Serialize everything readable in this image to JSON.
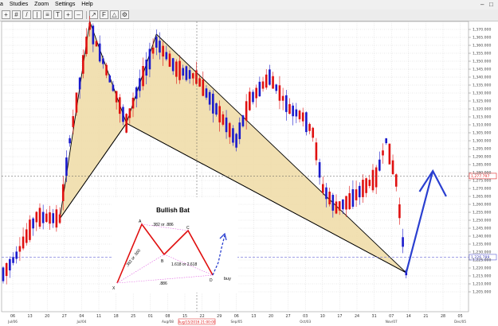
{
  "menu": [
    "a",
    "Studies",
    "Zoom",
    "Settings",
    "Help"
  ],
  "price_axis": {
    "labels": [
      "1,370.000",
      "1,365.000",
      "1,360.000",
      "1,355.000",
      "1,350.000",
      "1,345.000",
      "1,340.000",
      "1,335.000",
      "1,330.000",
      "1,325.000",
      "1,320.000",
      "1,315.000",
      "1,310.000",
      "1,305.000",
      "1,300.000",
      "1,295.000",
      "1,290.000",
      "1,285.000",
      "1,280.000",
      "1,275.000",
      "1,270.000",
      "1,265.000",
      "1,260.000",
      "1,255.000",
      "1,250.000",
      "1,245.000",
      "1,240.000",
      "1,235.000",
      "1,230.000",
      "1,225.000",
      "1,220.000",
      "1,215.000",
      "1,210.000",
      "1,205.000"
    ],
    "crosshair_price": "1,277.797",
    "h_line_price": "1,226.789"
  },
  "time_axis": {
    "days": [
      "06",
      "13",
      "20",
      "27",
      "04",
      "11",
      "18",
      "25",
      "01",
      "08",
      "15",
      "22",
      "29",
      "06",
      "13",
      "20",
      "27",
      "03",
      "10",
      "17",
      "24",
      "31",
      "07",
      "14",
      "21",
      "28",
      "05"
    ],
    "months": [
      "Jul/06",
      "Jul/04",
      "Aug/08",
      "Sep/05",
      "Oct/03",
      "Nov/07",
      "Dec/05"
    ],
    "cursor_label": "Aug/15/2016 21:00:00"
  },
  "chart_data": {
    "type": "candlestick",
    "y_range": [
      1203,
      1372
    ],
    "colors": {
      "up": "#1a1acc",
      "down": "#e01010",
      "pattern_fill": "#eedba4",
      "arrow": "#2a3fd0"
    },
    "pattern_points": [
      {
        "label": "X",
        "date": "2016-06-24",
        "price": 1251
      },
      {
        "label": "A",
        "date": "2016-07-06",
        "price": 1375
      },
      {
        "label": "B",
        "date": "2016-07-21",
        "price": 1311
      },
      {
        "label": "C",
        "date": "2016-08-04",
        "price": 1367
      },
      {
        "label": "D",
        "date": "2016-10-14",
        "price": 1217
      }
    ],
    "projection_arrow": [
      {
        "date": "2016-10-14",
        "price": 1217
      },
      {
        "date": "2016-10-21",
        "price": 1281
      },
      {
        "date": "2016-10-25",
        "price": 1265
      }
    ]
  },
  "inset": {
    "title": "Bullish Bat",
    "points": {
      "x": "X",
      "a": "A",
      "b": "B",
      "c": "C",
      "d": "D"
    },
    "ratio_ab": ".382 or .500",
    "ratio_bc": ".382 or .886",
    "ratio_cd": "1.618 or 2.618",
    "ratio_xd": ".886",
    "action": "buy"
  }
}
